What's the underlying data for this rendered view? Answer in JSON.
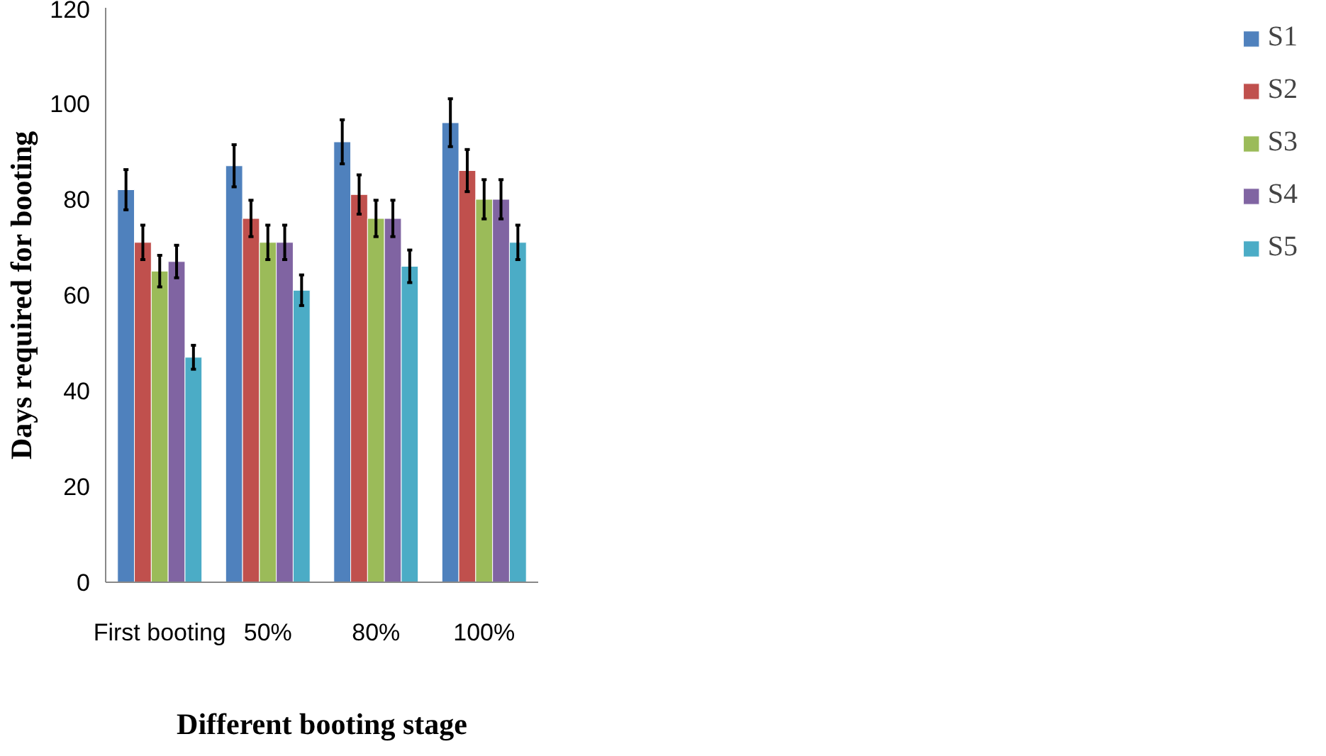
{
  "chart_data": {
    "type": "bar",
    "xlabel": "Different booting stage",
    "ylabel": "Days required for booting",
    "categories": [
      "First booting",
      "50%",
      "80%",
      "100%"
    ],
    "series": [
      {
        "name": "S1",
        "color": "#4f81bd",
        "values": [
          82,
          87,
          92,
          96
        ],
        "errors": [
          4.2,
          4.4,
          4.6,
          5.0
        ]
      },
      {
        "name": "S2",
        "color": "#c0504d",
        "values": [
          71,
          76,
          81,
          86
        ],
        "errors": [
          3.6,
          3.8,
          4.1,
          4.4
        ]
      },
      {
        "name": "S3",
        "color": "#9bbb59",
        "values": [
          65,
          71,
          76,
          80
        ],
        "errors": [
          3.3,
          3.6,
          3.8,
          4.1
        ]
      },
      {
        "name": "S4",
        "color": "#8064a2",
        "values": [
          67,
          71,
          76,
          80
        ],
        "errors": [
          3.4,
          3.6,
          3.8,
          4.1
        ]
      },
      {
        "name": "S5",
        "color": "#4bacc6",
        "values": [
          47,
          61,
          66,
          71
        ],
        "errors": [
          2.5,
          3.2,
          3.4,
          3.6
        ]
      }
    ],
    "ylim": [
      0,
      120
    ],
    "yticks": [
      0,
      20,
      40,
      60,
      80,
      100,
      120
    ],
    "grid": false,
    "legend": "right"
  }
}
